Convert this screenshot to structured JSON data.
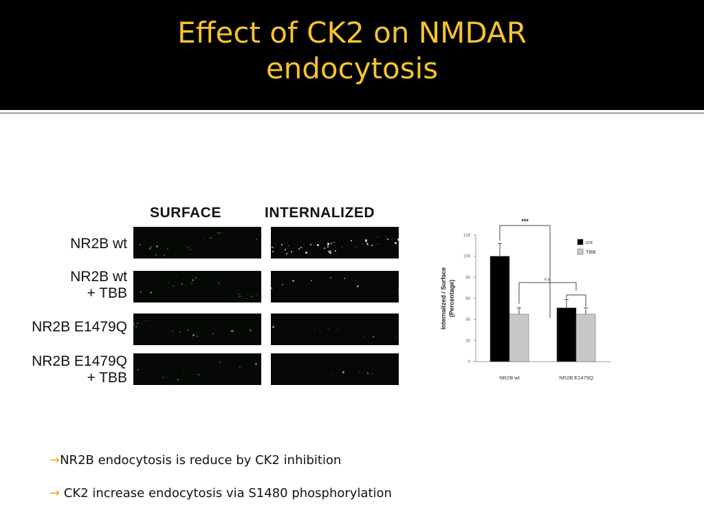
{
  "slide": {
    "title_line1": "Effect of CK2 on NMDAR",
    "title_line2": "endocytosis"
  },
  "figure": {
    "column_headers": [
      "SURFACE",
      "INTERNALIZED"
    ],
    "rows": [
      {
        "label_line1": "NR2B wt",
        "label_line2": ""
      },
      {
        "label_line1": "NR2B wt",
        "label_line2": "+ TBB"
      },
      {
        "label_line1": "NR2B E1479Q",
        "label_line2": ""
      },
      {
        "label_line1": "NR2B E1479Q",
        "label_line2": "+ TBB"
      }
    ]
  },
  "chart_data": {
    "type": "bar",
    "categories": [
      "NR2B wt",
      "NR2B E1479Q"
    ],
    "series": [
      {
        "name": "cnt",
        "values": [
          100,
          51
        ],
        "errors": [
          12,
          8
        ],
        "color": "#000000"
      },
      {
        "name": "TBB",
        "values": [
          45,
          45
        ],
        "errors": [
          6,
          6
        ],
        "color": "#c8c8c8"
      }
    ],
    "ylabel_line1": "Internalized / Surface",
    "ylabel_line2": "(Percentage)",
    "ylim": [
      0,
      120
    ],
    "yticks": [
      0,
      20,
      40,
      60,
      80,
      100,
      120
    ],
    "annotations": [
      "***",
      "n.s."
    ],
    "legend_position": "top-right",
    "grid": false
  },
  "bullets": [
    {
      "arrow": "→",
      "text": "NR2B endocytosis is reduce by CK2 inhibition"
    },
    {
      "arrow": "→",
      "text": " CK2 increase endocytosis via S1480 phosphorylation"
    }
  ]
}
